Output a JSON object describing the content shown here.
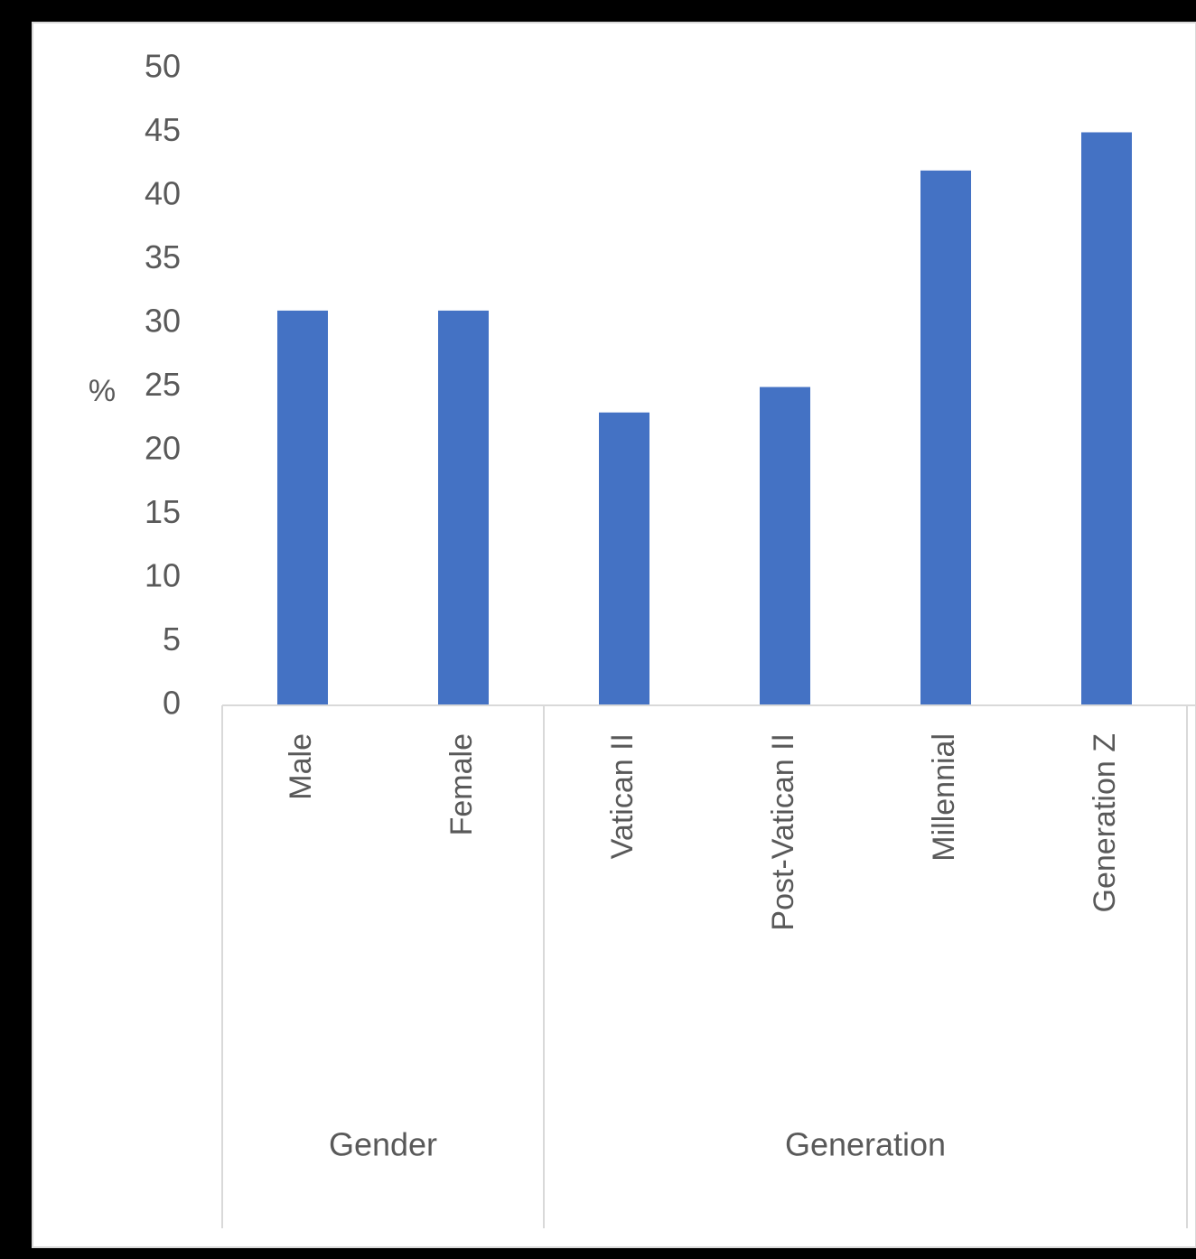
{
  "chart_data": {
    "type": "bar",
    "ylabel": "%",
    "ylim": [
      0,
      50
    ],
    "yticks": [
      "0",
      "5",
      "10",
      "15",
      "20",
      "25",
      "30",
      "35",
      "40",
      "45",
      "50"
    ],
    "categories": [
      "Male",
      "Female",
      "Vatican II",
      "Post-Vatican II",
      "Millennial",
      "Generation Z"
    ],
    "values": [
      31,
      31,
      23,
      25,
      42,
      45
    ],
    "groups": [
      {
        "name": "Gender",
        "categories": [
          "Male",
          "Female"
        ]
      },
      {
        "name": "Generation",
        "categories": [
          "Vatican II",
          "Post-Vatican II",
          "Millennial",
          "Generation Z"
        ]
      }
    ],
    "grid": false,
    "legend": "none",
    "colors": {
      "bar": "#4472C4",
      "axis": "#D9D9D9",
      "text": "#595959",
      "background": "#FFFFFF",
      "frame": "#000000"
    }
  }
}
